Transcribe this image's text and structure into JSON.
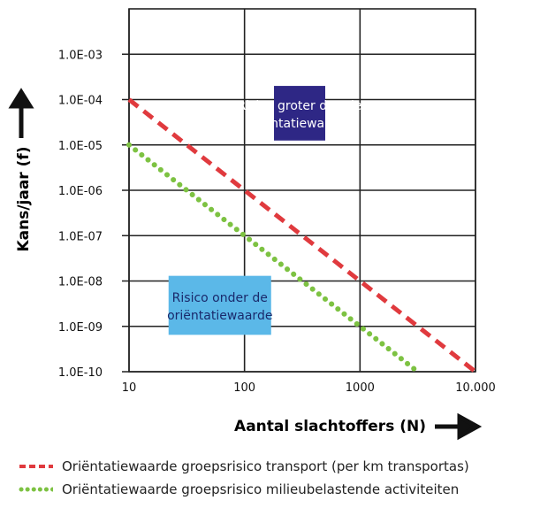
{
  "chart_data": {
    "type": "line",
    "xscale": "log",
    "yscale": "log",
    "xlim": [
      10,
      10000
    ],
    "ylim": [
      1e-10,
      0.01
    ],
    "grid": true,
    "x_ticks": [
      10,
      100,
      1000,
      10000
    ],
    "x_tick_labels": [
      "10",
      "100",
      "1000",
      "10.000"
    ],
    "y_ticks": [
      1e-10,
      1e-09,
      1e-08,
      1e-07,
      1e-06,
      1e-05,
      0.0001,
      0.001
    ],
    "y_tick_labels": [
      "1.0E-10",
      "1.0E-09",
      "1.0E-08",
      "1.0E-07",
      "1.0E-06",
      "1.0E-05",
      "1.0E-04",
      "1.0E-03"
    ],
    "xlabel": "Aantal slachtoffers (N)",
    "ylabel": "Kans/jaar (f)",
    "series": [
      {
        "name": "Oriëntatiewaarde groepsrisico transport (per km transportas)",
        "style": "dashed",
        "color": "#e03a3e",
        "x": [
          10,
          100,
          1000,
          10000
        ],
        "y": [
          0.0001,
          1e-06,
          1e-08,
          1e-10
        ]
      },
      {
        "name": "Oriëntatiewaarde groepsrisico milieubelastende activiteiten",
        "style": "dotted",
        "color": "#7dc242",
        "x": [
          10,
          100,
          1000,
          3162
        ],
        "y": [
          1e-05,
          1e-07,
          1e-09,
          1e-10
        ]
      }
    ],
    "annotations": [
      {
        "text_lines": [
          "Risico groter dan de",
          "oriëntatiewaarde"
        ],
        "bg": "#2e2785",
        "fg": "#ffffff"
      },
      {
        "text_lines": [
          "Risico onder de",
          "oriëntatiewaarde"
        ],
        "bg": "#5bb8e8",
        "fg": "#1a2a6c"
      }
    ]
  }
}
